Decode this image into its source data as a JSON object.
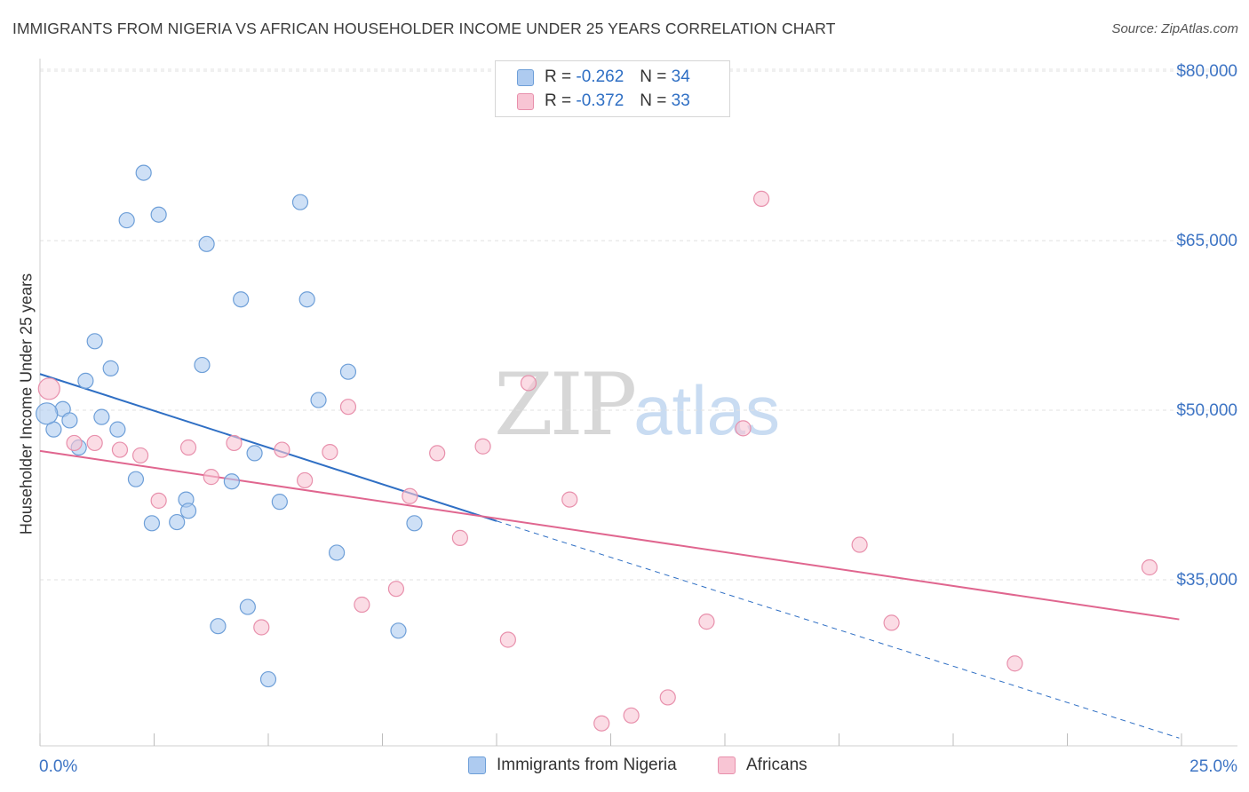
{
  "header": {
    "title": "IMMIGRANTS FROM NIGERIA VS AFRICAN HOUSEHOLDER INCOME UNDER 25 YEARS CORRELATION CHART",
    "source": "Source: ZipAtlas.com"
  },
  "watermark": {
    "zip": "ZIP",
    "atlas": "atlas"
  },
  "legend": {
    "rows": [
      {
        "r_label": "R =",
        "r_value": "-0.262",
        "n_label": "N =",
        "n_value": "34",
        "color": "#aecbf0",
        "border": "#6e9fd8"
      },
      {
        "r_label": "R =",
        "r_value": "-0.372",
        "n_label": "N =",
        "n_value": "33",
        "color": "#f8c5d4",
        "border": "#e890ac"
      }
    ]
  },
  "bottom_legend": {
    "items": [
      {
        "label": "Immigrants from Nigeria",
        "color": "#aecbf0",
        "border": "#6e9fd8"
      },
      {
        "label": "Africans",
        "color": "#f8c5d4",
        "border": "#e890ac"
      }
    ]
  },
  "chart_data": {
    "type": "scatter",
    "title": "IMMIGRANTS FROM NIGERIA VS AFRICAN HOUSEHOLDER INCOME UNDER 25 YEARS CORRELATION CHART",
    "xlabel": "",
    "ylabel": "Householder Income Under 25 years",
    "xlim": [
      0,
      25
    ],
    "ylim": [
      21500,
      83000
    ],
    "x_tick_labels": [
      "0.0%",
      "25.0%"
    ],
    "y_ticks": [
      35000,
      50000,
      65000,
      80000
    ],
    "y_tick_labels": [
      "$35,000",
      "$50,000",
      "$65,000",
      "$80,000"
    ],
    "grid": true,
    "series": [
      {
        "name": "Immigrants from Nigeria",
        "color": "#6e9fd8",
        "fill": "#aecbf0",
        "points": [
          {
            "x": 2.27,
            "y": 71000
          },
          {
            "x": 1.9,
            "y": 66800
          },
          {
            "x": 2.6,
            "y": 67300
          },
          {
            "x": 3.65,
            "y": 64700
          },
          {
            "x": 5.7,
            "y": 68400
          },
          {
            "x": 4.4,
            "y": 59800
          },
          {
            "x": 5.85,
            "y": 59800
          },
          {
            "x": 1.2,
            "y": 56100
          },
          {
            "x": 1.55,
            "y": 53700
          },
          {
            "x": 3.55,
            "y": 54000
          },
          {
            "x": 6.75,
            "y": 53400
          },
          {
            "x": 1.0,
            "y": 52600
          },
          {
            "x": 0.5,
            "y": 50100
          },
          {
            "x": 0.65,
            "y": 49100
          },
          {
            "x": 1.35,
            "y": 49400
          },
          {
            "x": 0.3,
            "y": 48300
          },
          {
            "x": 1.7,
            "y": 48300
          },
          {
            "x": 0.85,
            "y": 46700
          },
          {
            "x": 6.1,
            "y": 50900
          },
          {
            "x": 4.7,
            "y": 46200
          },
          {
            "x": 2.1,
            "y": 43900
          },
          {
            "x": 4.2,
            "y": 43700
          },
          {
            "x": 3.2,
            "y": 42100
          },
          {
            "x": 5.25,
            "y": 41900
          },
          {
            "x": 3.25,
            "y": 41100
          },
          {
            "x": 2.45,
            "y": 40000
          },
          {
            "x": 3.0,
            "y": 40100
          },
          {
            "x": 8.2,
            "y": 40000
          },
          {
            "x": 6.5,
            "y": 37400
          },
          {
            "x": 4.55,
            "y": 32600
          },
          {
            "x": 3.9,
            "y": 30900
          },
          {
            "x": 7.85,
            "y": 30500
          },
          {
            "x": 5.0,
            "y": 26200
          },
          {
            "x": 0.15,
            "y": 49700
          }
        ]
      },
      {
        "name": "Africans",
        "color": "#e890ac",
        "fill": "#f8c5d4",
        "points": [
          {
            "x": 15.8,
            "y": 68700
          },
          {
            "x": 0.2,
            "y": 51900
          },
          {
            "x": 10.7,
            "y": 52400
          },
          {
            "x": 6.75,
            "y": 50300
          },
          {
            "x": 15.4,
            "y": 48400
          },
          {
            "x": 0.75,
            "y": 47100
          },
          {
            "x": 1.2,
            "y": 47100
          },
          {
            "x": 1.75,
            "y": 46500
          },
          {
            "x": 2.2,
            "y": 46000
          },
          {
            "x": 3.25,
            "y": 46700
          },
          {
            "x": 4.25,
            "y": 47100
          },
          {
            "x": 5.3,
            "y": 46500
          },
          {
            "x": 6.35,
            "y": 46300
          },
          {
            "x": 8.7,
            "y": 46200
          },
          {
            "x": 9.7,
            "y": 46800
          },
          {
            "x": 3.75,
            "y": 44100
          },
          {
            "x": 5.8,
            "y": 43800
          },
          {
            "x": 2.6,
            "y": 42000
          },
          {
            "x": 8.1,
            "y": 42400
          },
          {
            "x": 11.6,
            "y": 42100
          },
          {
            "x": 9.2,
            "y": 38700
          },
          {
            "x": 17.95,
            "y": 38100
          },
          {
            "x": 24.3,
            "y": 36100
          },
          {
            "x": 7.8,
            "y": 34200
          },
          {
            "x": 7.05,
            "y": 32800
          },
          {
            "x": 4.85,
            "y": 30800
          },
          {
            "x": 14.6,
            "y": 31300
          },
          {
            "x": 18.65,
            "y": 31200
          },
          {
            "x": 10.25,
            "y": 29700
          },
          {
            "x": 21.35,
            "y": 27600
          },
          {
            "x": 13.75,
            "y": 24600
          },
          {
            "x": 12.95,
            "y": 23000
          },
          {
            "x": 12.3,
            "y": 22300
          }
        ]
      }
    ],
    "trend_lines": [
      {
        "series": "Immigrants from Nigeria",
        "color": "#2f6fc4",
        "x0": 0,
        "y0": 53200,
        "x1": 10,
        "y1": 40200,
        "dashed_to_x": 24.95,
        "dashed_to_y": 21000
      },
      {
        "series": "Africans",
        "color": "#e0668f",
        "x0": 0,
        "y0": 46400,
        "x1": 24.95,
        "y1": 31500
      }
    ]
  }
}
